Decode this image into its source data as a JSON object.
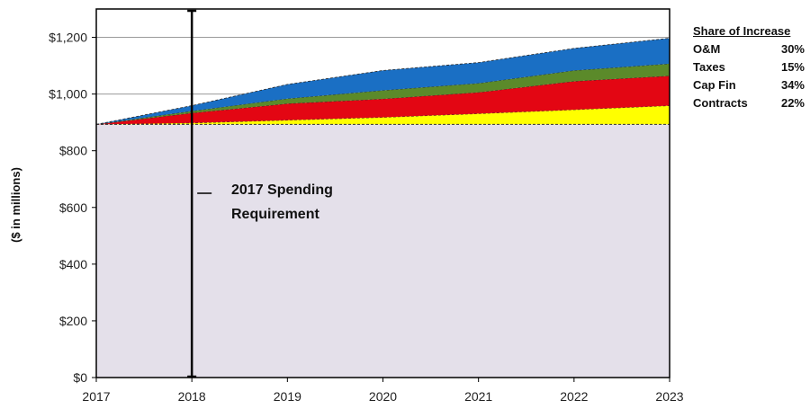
{
  "chart_data": {
    "type": "area",
    "x": [
      "2017",
      "2018",
      "2019",
      "2020",
      "2021",
      "2022",
      "2023"
    ],
    "ylabel": "($ in millions)",
    "yticks": [
      "$0",
      "$200",
      "$400",
      "$600",
      "$800",
      "$1,000",
      "$1,200"
    ],
    "ylim": [
      0,
      1300
    ],
    "grid": true,
    "baseline": {
      "name": "2017 Spending Requirement",
      "value": 893
    },
    "series": [
      {
        "name": "Contracts",
        "color": "#ffff00",
        "values": [
          0,
          5,
          15,
          25,
          38,
          52,
          66
        ]
      },
      {
        "name": "Cap Fin",
        "color": "#e30613",
        "values": [
          0,
          35,
          58,
          65,
          75,
          100,
          105
        ]
      },
      {
        "name": "Taxes",
        "color": "#5b8a2a",
        "values": [
          0,
          7,
          18,
          30,
          32,
          38,
          43
        ]
      },
      {
        "name": "O&M",
        "color": "#1a6fc4",
        "values": [
          0,
          19,
          50,
          70,
          73,
          78,
          90
        ]
      }
    ]
  },
  "legend": {
    "title": "Share of Increase",
    "items": [
      {
        "label": "O&M",
        "share": "30%"
      },
      {
        "label": "Taxes",
        "share": "15%"
      },
      {
        "label": "Cap Fin",
        "share": "34%"
      },
      {
        "label": "Contracts",
        "share": "22%"
      }
    ]
  },
  "annotation": {
    "line1": "2017 Spending",
    "line2": "Requirement"
  },
  "colors": {
    "plot_background": "#e4e0ea",
    "border": "#000000"
  }
}
